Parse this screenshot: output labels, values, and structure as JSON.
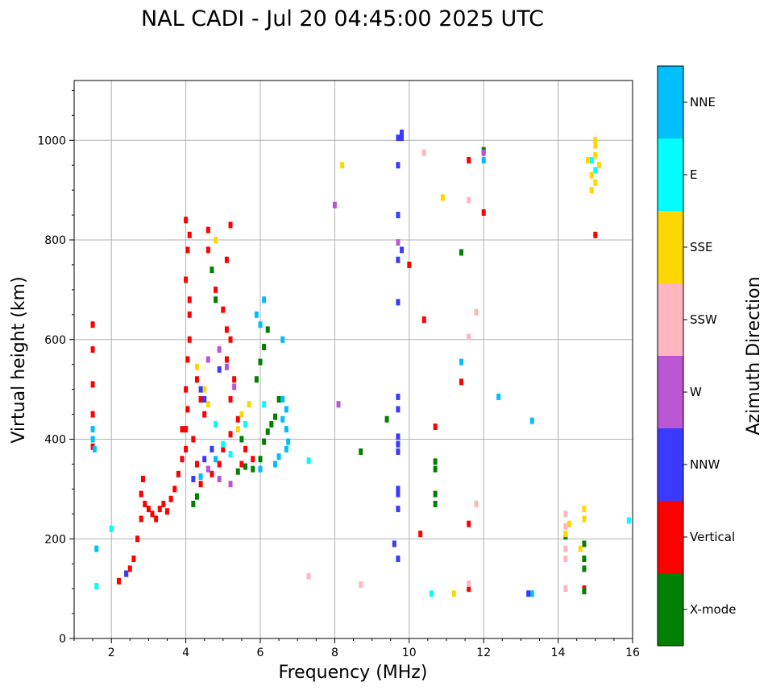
{
  "chart_data": {
    "type": "scatter",
    "title": "NAL CADI - Jul 20 04:45:00 2025 UTC",
    "xlabel": "Frequency (MHz)",
    "ylabel": "Virtual height (km)",
    "xlim": [
      1,
      16
    ],
    "ylim": [
      0,
      1120
    ],
    "xticks": [
      2,
      4,
      6,
      8,
      10,
      12,
      14,
      16
    ],
    "yticks": [
      0,
      200,
      400,
      600,
      800,
      1000
    ],
    "grid": true,
    "colorbar": {
      "title": "Azimuth Direction",
      "categories": [
        {
          "name": "NNE",
          "color": "#00bfff"
        },
        {
          "name": "E",
          "color": "#00ffff"
        },
        {
          "name": "SSE",
          "color": "#ffd700"
        },
        {
          "name": "SSW",
          "color": "#ffb6c1"
        },
        {
          "name": "W",
          "color": "#ba55d3"
        },
        {
          "name": "NNW",
          "color": "#3a3aff"
        },
        {
          "name": "Vertical",
          "color": "#ff0000"
        },
        {
          "name": "X-mode",
          "color": "#008000"
        }
      ]
    },
    "series": [
      {
        "name": "Vertical",
        "points": [
          [
            1.5,
            630
          ],
          [
            1.5,
            580
          ],
          [
            1.5,
            510
          ],
          [
            1.5,
            450
          ],
          [
            1.5,
            385
          ],
          [
            2.2,
            115
          ],
          [
            2.4,
            130
          ],
          [
            2.5,
            140
          ],
          [
            2.6,
            160
          ],
          [
            2.7,
            200
          ],
          [
            2.8,
            240
          ],
          [
            2.8,
            290
          ],
          [
            2.85,
            320
          ],
          [
            2.9,
            270
          ],
          [
            3.0,
            260
          ],
          [
            3.1,
            250
          ],
          [
            3.2,
            240
          ],
          [
            3.3,
            260
          ],
          [
            3.4,
            270
          ],
          [
            3.5,
            255
          ],
          [
            3.6,
            280
          ],
          [
            3.7,
            300
          ],
          [
            3.8,
            330
          ],
          [
            3.9,
            360
          ],
          [
            4.0,
            380
          ],
          [
            4.0,
            420
          ],
          [
            4.05,
            460
          ],
          [
            4.0,
            500
          ],
          [
            4.05,
            560
          ],
          [
            4.1,
            600
          ],
          [
            4.1,
            650
          ],
          [
            4.1,
            680
          ],
          [
            4.0,
            720
          ],
          [
            4.05,
            780
          ],
          [
            4.0,
            840
          ],
          [
            4.1,
            810
          ],
          [
            4.3,
            520
          ],
          [
            4.4,
            480
          ],
          [
            4.5,
            450
          ],
          [
            4.6,
            820
          ],
          [
            4.6,
            780
          ],
          [
            4.8,
            700
          ],
          [
            5.0,
            660
          ],
          [
            5.1,
            620
          ],
          [
            5.2,
            600
          ],
          [
            5.1,
            560
          ],
          [
            5.3,
            520
          ],
          [
            5.2,
            480
          ],
          [
            4.7,
            330
          ],
          [
            4.9,
            350
          ],
          [
            5.0,
            380
          ],
          [
            5.2,
            410
          ],
          [
            5.4,
            440
          ],
          [
            5.5,
            350
          ],
          [
            5.6,
            380
          ],
          [
            4.3,
            350
          ],
          [
            4.4,
            310
          ],
          [
            3.9,
            420
          ],
          [
            4.2,
            400
          ],
          [
            5.8,
            360
          ],
          [
            5.1,
            760
          ],
          [
            5.2,
            830
          ],
          [
            10.0,
            750
          ],
          [
            10.4,
            640
          ],
          [
            10.7,
            425
          ],
          [
            10.3,
            210
          ],
          [
            11.4,
            515
          ],
          [
            11.6,
            960
          ],
          [
            11.6,
            230
          ],
          [
            11.6,
            100
          ],
          [
            12.0,
            855
          ],
          [
            15.0,
            810
          ],
          [
            14.7,
            100
          ]
        ]
      },
      {
        "name": "X-mode",
        "points": [
          [
            4.2,
            270
          ],
          [
            4.3,
            285
          ],
          [
            5.4,
            335
          ],
          [
            5.6,
            345
          ],
          [
            5.8,
            340
          ],
          [
            6.0,
            360
          ],
          [
            6.1,
            395
          ],
          [
            6.2,
            415
          ],
          [
            6.3,
            430
          ],
          [
            6.4,
            445
          ],
          [
            6.5,
            480
          ],
          [
            5.9,
            520
          ],
          [
            6.0,
            555
          ],
          [
            6.1,
            585
          ],
          [
            6.2,
            620
          ],
          [
            4.8,
            680
          ],
          [
            4.7,
            740
          ],
          [
            5.5,
            400
          ],
          [
            8.7,
            375
          ],
          [
            9.4,
            440
          ],
          [
            10.7,
            340
          ],
          [
            10.7,
            355
          ],
          [
            10.7,
            290
          ],
          [
            10.7,
            270
          ],
          [
            11.4,
            775
          ],
          [
            12.0,
            980
          ],
          [
            14.2,
            205
          ],
          [
            14.7,
            190
          ],
          [
            14.7,
            160
          ],
          [
            14.7,
            140
          ],
          [
            14.7,
            95
          ]
        ]
      },
      {
        "name": "NNE",
        "points": [
          [
            1.5,
            420
          ],
          [
            1.5,
            400
          ],
          [
            1.55,
            380
          ],
          [
            1.6,
            180
          ],
          [
            5.9,
            650
          ],
          [
            6.0,
            630
          ],
          [
            6.1,
            680
          ],
          [
            6.6,
            600
          ],
          [
            6.6,
            480
          ],
          [
            6.7,
            460
          ],
          [
            6.6,
            440
          ],
          [
            6.7,
            420
          ],
          [
            6.75,
            395
          ],
          [
            6.7,
            380
          ],
          [
            6.5,
            365
          ],
          [
            6.4,
            350
          ],
          [
            6.0,
            340
          ],
          [
            4.8,
            360
          ],
          [
            4.6,
            340
          ],
          [
            4.4,
            325
          ],
          [
            11.4,
            555
          ],
          [
            12.0,
            960
          ],
          [
            12.4,
            485
          ],
          [
            13.3,
            437
          ],
          [
            13.3,
            90
          ]
        ]
      },
      {
        "name": "E",
        "points": [
          [
            2.0,
            220
          ],
          [
            1.6,
            105
          ],
          [
            4.8,
            430
          ],
          [
            5.0,
            390
          ],
          [
            5.2,
            370
          ],
          [
            5.6,
            430
          ],
          [
            6.1,
            470
          ],
          [
            7.3,
            357
          ],
          [
            10.6,
            90
          ],
          [
            14.9,
            960
          ],
          [
            15.0,
            940
          ],
          [
            15.9,
            237
          ]
        ]
      },
      {
        "name": "SSE",
        "points": [
          [
            4.3,
            545
          ],
          [
            4.5,
            500
          ],
          [
            4.6,
            470
          ],
          [
            5.4,
            420
          ],
          [
            5.5,
            450
          ],
          [
            5.7,
            470
          ],
          [
            4.8,
            800
          ],
          [
            8.2,
            950
          ],
          [
            10.9,
            885
          ],
          [
            11.2,
            90
          ],
          [
            14.3,
            230
          ],
          [
            14.2,
            210
          ],
          [
            14.7,
            260
          ],
          [
            14.7,
            240
          ],
          [
            14.6,
            180
          ],
          [
            15.0,
            1000
          ],
          [
            15.0,
            990
          ],
          [
            15.0,
            970
          ],
          [
            15.1,
            950
          ],
          [
            14.9,
            930
          ],
          [
            15.0,
            915
          ],
          [
            14.9,
            900
          ],
          [
            14.8,
            960
          ]
        ]
      },
      {
        "name": "SSW",
        "points": [
          [
            7.3,
            125
          ],
          [
            8.7,
            108
          ],
          [
            10.4,
            975
          ],
          [
            11.6,
            880
          ],
          [
            11.8,
            655
          ],
          [
            11.6,
            605
          ],
          [
            11.8,
            270
          ],
          [
            11.6,
            110
          ],
          [
            14.2,
            250
          ],
          [
            14.2,
            225
          ],
          [
            14.2,
            180
          ],
          [
            14.2,
            160
          ],
          [
            14.2,
            100
          ]
        ]
      },
      {
        "name": "NNW",
        "points": [
          [
            2.4,
            130
          ],
          [
            4.4,
            500
          ],
          [
            4.5,
            480
          ],
          [
            4.9,
            540
          ],
          [
            4.7,
            380
          ],
          [
            4.5,
            360
          ],
          [
            4.2,
            320
          ],
          [
            9.8,
            1015
          ],
          [
            9.7,
            1005
          ],
          [
            9.7,
            950
          ],
          [
            9.7,
            850
          ],
          [
            9.7,
            760
          ],
          [
            9.8,
            780
          ],
          [
            9.7,
            675
          ],
          [
            9.7,
            485
          ],
          [
            9.7,
            460
          ],
          [
            9.7,
            405
          ],
          [
            9.7,
            390
          ],
          [
            9.7,
            375
          ],
          [
            9.7,
            300
          ],
          [
            9.7,
            290
          ],
          [
            9.7,
            260
          ],
          [
            9.6,
            190
          ],
          [
            9.7,
            160
          ],
          [
            9.8,
            1005
          ],
          [
            13.2,
            90
          ]
        ]
      },
      {
        "name": "W",
        "points": [
          [
            4.6,
            560
          ],
          [
            4.9,
            580
          ],
          [
            5.1,
            545
          ],
          [
            5.3,
            505
          ],
          [
            4.6,
            340
          ],
          [
            4.9,
            320
          ],
          [
            5.2,
            310
          ],
          [
            8.0,
            870
          ],
          [
            8.1,
            470
          ],
          [
            9.7,
            795
          ],
          [
            12.0,
            975
          ]
        ]
      }
    ]
  }
}
